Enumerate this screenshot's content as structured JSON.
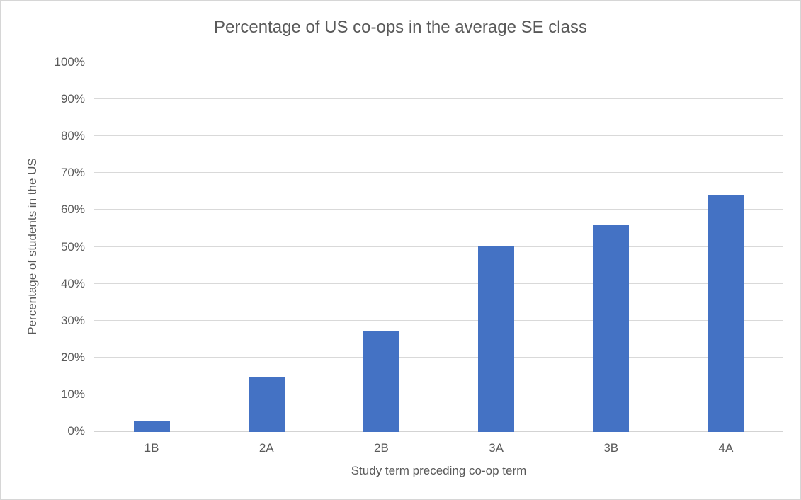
{
  "figure": {
    "background": "#ffffff",
    "border_color": "#d6d6d6"
  },
  "chart_data": {
    "type": "bar",
    "title": "Percentage of US co-ops in the average SE class",
    "xlabel": "Study term preceding co-op term",
    "ylabel": "Percentage of students in the US",
    "categories": [
      "1B",
      "2A",
      "2B",
      "3A",
      "3B",
      "4A"
    ],
    "values": [
      3.1,
      15.0,
      27.4,
      50.3,
      56.2,
      64.1
    ],
    "ylim": [
      0,
      100
    ],
    "ytick_step": 10,
    "ytick_labels": [
      "0%",
      "10%",
      "20%",
      "30%",
      "40%",
      "50%",
      "60%",
      "70%",
      "80%",
      "90%",
      "100%"
    ],
    "grid": true,
    "legend": false,
    "bar_color": "#4472c4",
    "gridline_color": "#d9d9d9",
    "axis_line_color": "#d3d3d3",
    "text_color": "#595959"
  }
}
